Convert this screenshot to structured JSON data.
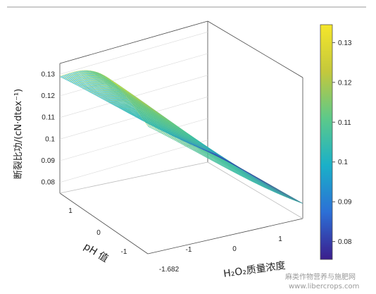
{
  "chart_data": {
    "type": "surface-3d",
    "zlabel": "断裂比功/(cN·dtex⁻¹)",
    "xlabel": "H₂O₂质量浓度",
    "ylabel": "pH 值",
    "zlim": [
      0.075,
      0.135
    ],
    "xlim": [
      -1.682,
      1.682
    ],
    "ylim": [
      -1.682,
      1.682
    ],
    "z_ticks": [
      "0.08",
      "0.09",
      "0.1",
      "0.11",
      "0.12",
      "0.13"
    ],
    "x_ticks": [
      "-1.682",
      "-1",
      "0",
      "1"
    ],
    "y_ticks": [
      "1",
      "0",
      "-1"
    ],
    "colorbar_ticks": [
      "0.08",
      "0.09",
      "0.1",
      "0.11",
      "0.12",
      "0.13"
    ],
    "colormap": [
      "#3b1d8c",
      "#2c6fd6",
      "#1ab0c8",
      "#5cc98a",
      "#c4c83c",
      "#f5e62a"
    ],
    "surface_samples": [
      {
        "x": -1.682,
        "y": 1.682,
        "z": 0.129
      },
      {
        "x": -1.682,
        "y": -1.682,
        "z": 0.134
      },
      {
        "x": 1.682,
        "y": 1.682,
        "z": 0.077
      },
      {
        "x": 1.682,
        "y": -1.682,
        "z": 0.082
      }
    ]
  },
  "watermark": {
    "line1": "麻类作物营养与施肥网",
    "line2": "www.libercrops.com"
  }
}
